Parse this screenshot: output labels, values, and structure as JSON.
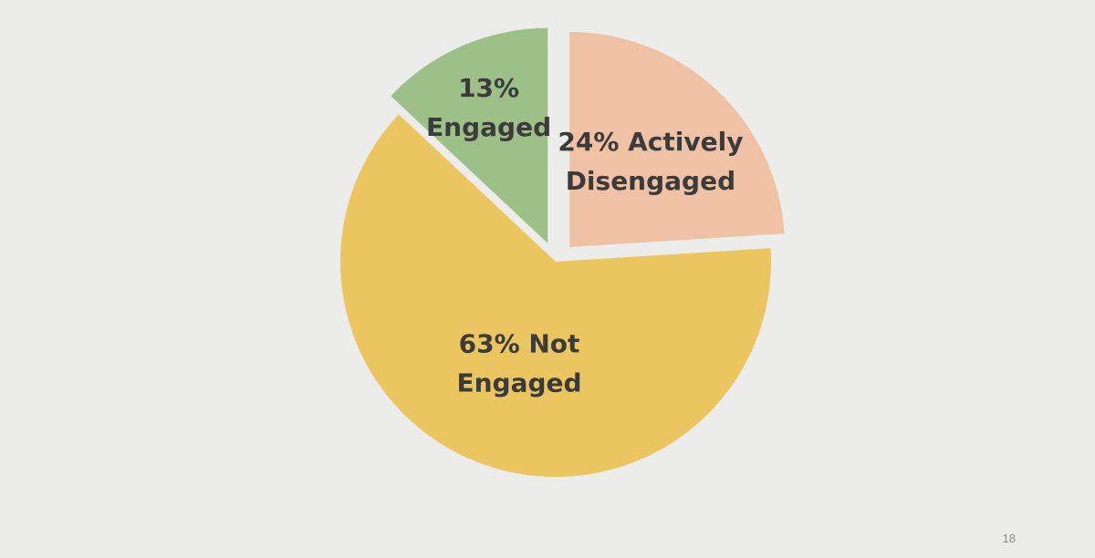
{
  "slide": {
    "page_number": "18"
  },
  "chart_data": {
    "type": "pie",
    "title": "",
    "slices": [
      {
        "label": "Actively Disengaged",
        "value": 24,
        "color": "#efc2a6",
        "exploded": true,
        "label_lines": [
          "24% Actively",
          "Disengaged"
        ]
      },
      {
        "label": "Not Engaged",
        "value": 63,
        "color": "#ebc55f",
        "exploded": false,
        "label_lines": [
          "63% Not",
          "Engaged"
        ]
      },
      {
        "label": "Engaged",
        "value": 13,
        "color": "#9cc087",
        "exploded": true,
        "label_lines": [
          "13%",
          "Engaged"
        ]
      }
    ],
    "start_angle_deg": 0,
    "direction": "clockwise",
    "legend": "none"
  }
}
